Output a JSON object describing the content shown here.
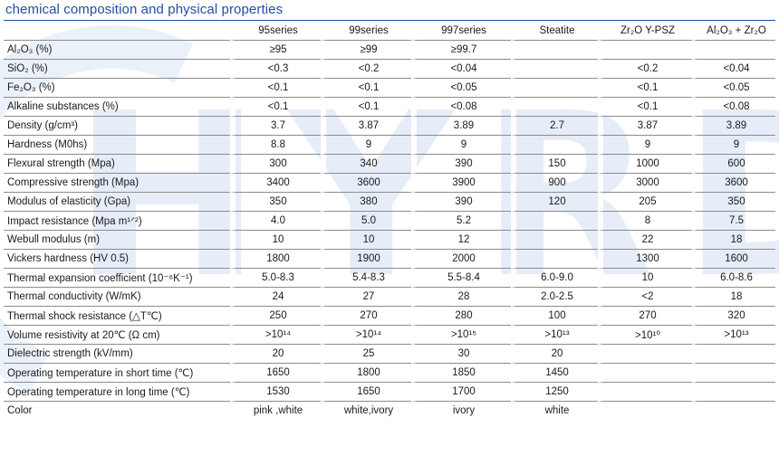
{
  "title": "chemical composition and physical properties",
  "watermark": "HYRD",
  "columns": [
    "95series",
    "99series",
    "997series",
    "Steatite",
    "Zr₂O Y-PSZ",
    "Al₂O₃ + Zr₂O"
  ],
  "rows": [
    {
      "label": "Al₂O₃ (%)",
      "values": [
        "≥95",
        "≥99",
        "≥99.7",
        "",
        "",
        ""
      ]
    },
    {
      "label": "SiO₂ (%)",
      "values": [
        "<0.3",
        "<0.2",
        "<0.04",
        "",
        "<0.2",
        "<0.04"
      ]
    },
    {
      "label": "Fe₂O₃ (%)",
      "values": [
        "<0.1",
        "<0.1",
        "<0.05",
        "",
        "<0.1",
        "<0.05"
      ]
    },
    {
      "label": "Alkaline substances (%)",
      "values": [
        "<0.1",
        "<0.1",
        "<0.08",
        "",
        "<0.1",
        "<0.08"
      ]
    },
    {
      "label": "Density (g/cm³)",
      "values": [
        "3.7",
        "3.87",
        "3.89",
        "2.7",
        "3.87",
        "3.89"
      ]
    },
    {
      "label": "Hardness (M0hs)",
      "values": [
        "8.8",
        "9",
        "9",
        "",
        "9",
        "9"
      ]
    },
    {
      "label": "Flexural strength (Mpa)",
      "values": [
        "300",
        "340",
        "390",
        "150",
        "1000",
        "600"
      ]
    },
    {
      "label": "Compressive strength (Mpa)",
      "values": [
        "3400",
        "3600",
        "3900",
        "900",
        "3000",
        "3600"
      ]
    },
    {
      "label": "Modulus of elasticity (Gpa)",
      "values": [
        "350",
        "380",
        "390",
        "120",
        "205",
        "350"
      ]
    },
    {
      "label": "Impact resistance (Mpa m¹ᐟ²)",
      "values": [
        "4.0",
        "5.0",
        "5.2",
        "",
        "8",
        "7.5"
      ]
    },
    {
      "label": "Webull modulus (m)",
      "values": [
        "10",
        "10",
        "12",
        "",
        "22",
        "18"
      ]
    },
    {
      "label": "Vickers hardness (HV 0.5)",
      "values": [
        "1800",
        "1900",
        "2000",
        "",
        "1300",
        "1600"
      ]
    },
    {
      "label": "Thermal expansion coefficient (10⁻⁶K⁻¹)",
      "values": [
        "5.0-8.3",
        "5.4-8.3",
        "5.5-8.4",
        "6.0-9.0",
        "10",
        "6.0-8.6"
      ]
    },
    {
      "label": "Thermal conductivity (W/mK)",
      "values": [
        "24",
        "27",
        "28",
        "2.0-2.5",
        "<2",
        "18"
      ]
    },
    {
      "label": "Thermal shock resistance (△T℃)",
      "values": [
        "250",
        "270",
        "280",
        "100",
        "270",
        "320"
      ]
    },
    {
      "label": "Volume resistivity at 20℃ (Ω cm)",
      "values": [
        ">10¹⁴",
        ">10¹⁴",
        ">10¹⁵",
        ">10¹³",
        ">10¹⁰",
        ">10¹³"
      ]
    },
    {
      "label": "Dielectric strength (kV/mm)",
      "values": [
        "20",
        "25",
        "30",
        "20",
        "",
        ""
      ]
    },
    {
      "label": "Operating temperature in short time (℃)",
      "values": [
        "1650",
        "1800",
        "1850",
        "1450",
        "",
        ""
      ]
    },
    {
      "label": "Operating temperature in long time (℃)",
      "values": [
        "1530",
        "1650",
        "1700",
        "1250",
        "",
        ""
      ]
    },
    {
      "label": "Color",
      "values": [
        "pink ,white",
        "white,ivory",
        "ivory",
        "white",
        "",
        ""
      ]
    }
  ]
}
